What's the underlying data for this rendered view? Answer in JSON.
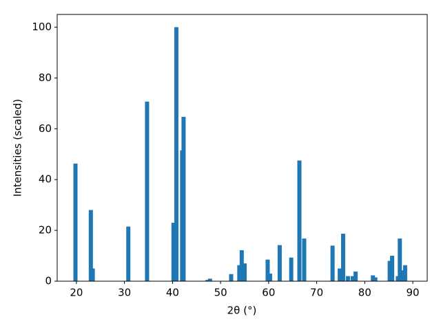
{
  "chart_data": {
    "type": "bar",
    "xlabel": "2θ (°)",
    "ylabel": "Intensities (scaled)",
    "color": "#1f77b4",
    "x": [
      19.8,
      23.0,
      23.4,
      30.8,
      34.7,
      40.2,
      40.8,
      42.0,
      42.3,
      47.3,
      47.8,
      52.2,
      53.9,
      54.4,
      55.0,
      59.8,
      60.3,
      62.3,
      64.7,
      66.4,
      67.4,
      73.3,
      74.8,
      75.5,
      76.5,
      77.5,
      78.1,
      81.7,
      82.2,
      85.2,
      85.7,
      86.9,
      87.3,
      87.8,
      88.4
    ],
    "values": [
      46.3,
      28,
      5,
      21.5,
      70.7,
      23,
      100,
      51.5,
      64.7,
      0.5,
      1,
      2.8,
      6.3,
      12.2,
      7,
      8.5,
      3,
      14.2,
      9.3,
      47.5,
      16.8,
      14,
      5,
      18.7,
      2,
      2,
      3.8,
      2.3,
      1.5,
      8,
      10,
      2,
      16.8,
      4.3,
      6.3
    ],
    "xlim": [
      16,
      93
    ],
    "ylim": [
      0,
      105
    ],
    "xticks": [
      20,
      30,
      40,
      50,
      60,
      70,
      80,
      90
    ],
    "yticks": [
      0,
      20,
      40,
      60,
      80,
      100
    ]
  }
}
